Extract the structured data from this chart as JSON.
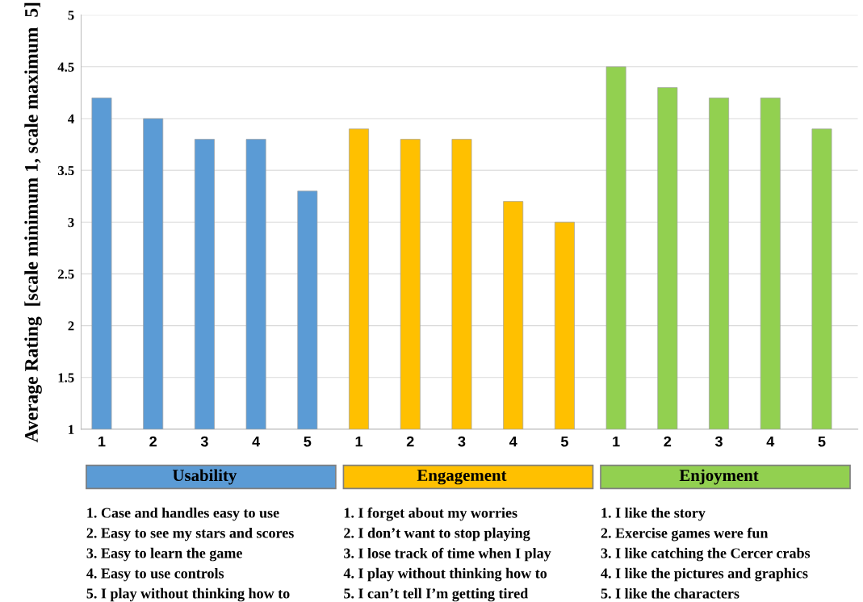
{
  "chart_data": {
    "type": "bar",
    "ylabel": "Average Rating  [scale minimum 1, scale maximum  5]",
    "categories": [
      "1",
      "2",
      "3",
      "4",
      "5",
      "1",
      "2",
      "3",
      "4",
      "5",
      "1",
      "2",
      "3",
      "4",
      "5"
    ],
    "values": [
      4.2,
      4.0,
      3.8,
      3.8,
      3.3,
      3.9,
      3.8,
      3.8,
      3.2,
      3.0,
      4.5,
      4.3,
      4.2,
      4.2,
      3.9
    ],
    "colors": [
      "#5b9bd5",
      "#5b9bd5",
      "#5b9bd5",
      "#5b9bd5",
      "#5b9bd5",
      "#ffc000",
      "#ffc000",
      "#ffc000",
      "#ffc000",
      "#ffc000",
      "#92d050",
      "#92d050",
      "#92d050",
      "#92d050",
      "#92d050"
    ],
    "ylim": [
      1,
      5
    ],
    "yticks": [
      1,
      1.5,
      2,
      2.5,
      3,
      3.5,
      4,
      4.5,
      5
    ],
    "grid": "y",
    "annotations": [
      "Usability",
      "Engagement",
      "Enjoyment",
      "1. Case and handles easy to use",
      "2. Easy to see my stars and scores",
      "3. Easy to learn the game",
      "4. Easy to use controls",
      "5. I play without thinking how to",
      "1. I forget about my worries",
      "2. I don’t want to stop playing",
      "3. I lose track of time when I play",
      "4. I play without thinking how to",
      "5. I can’t tell I’m getting tired",
      "1. I like the story",
      "2. Exercise games were fun",
      "3. I like catching the Cercer crabs",
      "4. I like the pictures and graphics",
      "5. I like the characters"
    ]
  }
}
